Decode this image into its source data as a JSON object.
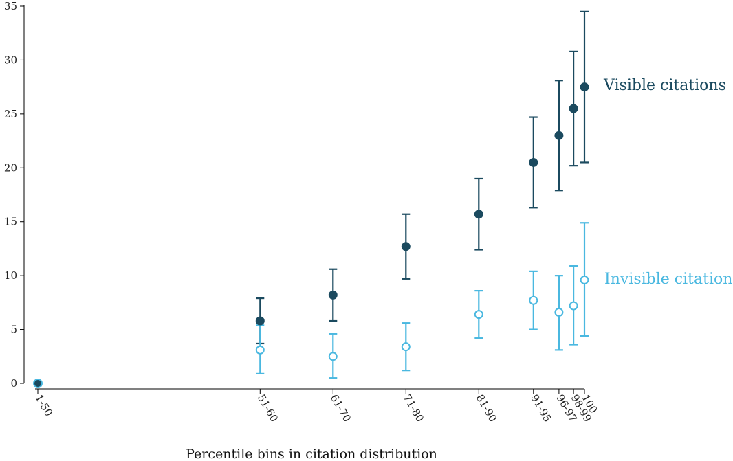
{
  "chart_data": {
    "type": "scatter",
    "title": "",
    "xlabel": "Percentile bins in citation distribution",
    "ylabel": "",
    "ylim": [
      0,
      35
    ],
    "yticks": [
      0,
      5,
      10,
      15,
      20,
      25,
      30,
      35
    ],
    "grid": false,
    "categories": [
      "1-50",
      "51-60",
      "61-70",
      "71-80",
      "81-90",
      "91-95",
      "96-97",
      "98-99",
      "100"
    ],
    "x_positions": [
      25,
      55.5,
      65.5,
      75.5,
      85.5,
      93,
      96.5,
      98.5,
      100
    ],
    "series": [
      {
        "name": "Visible citations",
        "color": "#1b4a5f",
        "marker": "filled-circle",
        "values": [
          0,
          5.8,
          8.2,
          12.7,
          15.7,
          20.5,
          23.0,
          25.5,
          27.5
        ],
        "lower": [
          null,
          3.7,
          5.8,
          9.7,
          12.4,
          16.3,
          17.9,
          20.2,
          20.5
        ],
        "upper": [
          null,
          7.9,
          10.6,
          15.7,
          19.0,
          24.7,
          28.1,
          30.8,
          34.5
        ]
      },
      {
        "name": "Invisible citations",
        "color": "#4ab8e0",
        "marker": "open-circle",
        "values": [
          0,
          3.1,
          2.5,
          3.4,
          6.4,
          7.7,
          6.6,
          7.2,
          9.6
        ],
        "lower": [
          null,
          0.9,
          0.5,
          1.2,
          4.2,
          5.0,
          3.1,
          3.6,
          4.4
        ],
        "upper": [
          null,
          5.4,
          4.6,
          5.6,
          8.6,
          10.4,
          10.0,
          10.9,
          14.9
        ]
      }
    ]
  }
}
